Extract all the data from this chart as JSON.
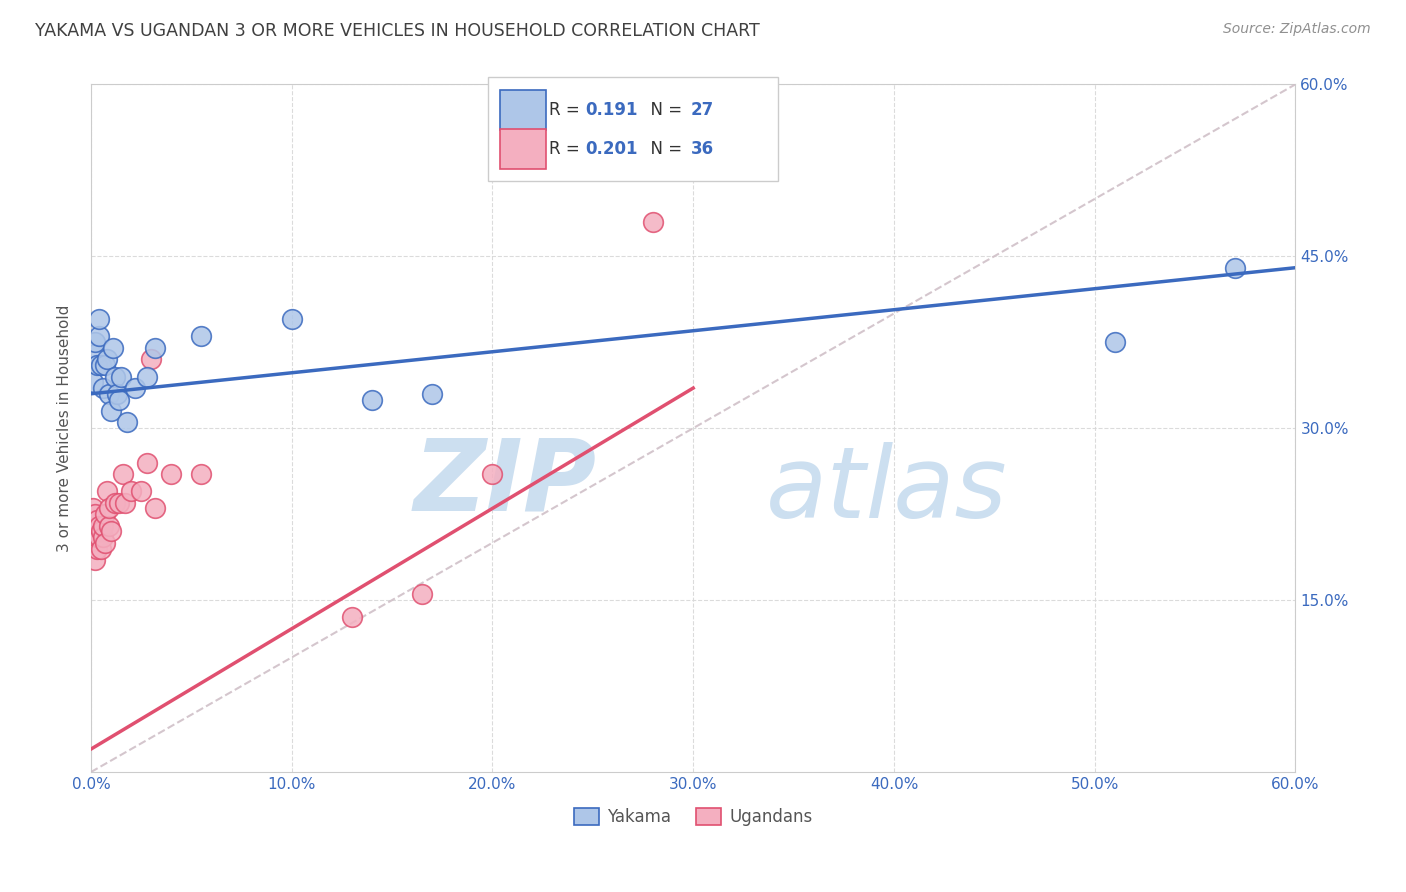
{
  "title": "YAKAMA VS UGANDAN 3 OR MORE VEHICLES IN HOUSEHOLD CORRELATION CHART",
  "source": "Source: ZipAtlas.com",
  "ylabel": "3 or more Vehicles in Household",
  "xlim": [
    0.0,
    0.6
  ],
  "ylim": [
    0.0,
    0.6
  ],
  "yakama_R": 0.191,
  "yakama_N": 27,
  "ugandan_R": 0.201,
  "ugandan_N": 36,
  "yakama_color": "#aec6e8",
  "ugandan_color": "#f4afc0",
  "yakama_line_color": "#3b6abf",
  "ugandan_line_color": "#e05070",
  "dashed_line_color": "#d0c0c8",
  "watermark_color": "#ccdff0",
  "title_color": "#404040",
  "source_color": "#909090",
  "axis_color": "#3b6abf",
  "grid_color": "#d8d8d8",
  "yakama_x": [
    0.001,
    0.002,
    0.002,
    0.003,
    0.004,
    0.004,
    0.005,
    0.006,
    0.007,
    0.008,
    0.009,
    0.01,
    0.011,
    0.012,
    0.013,
    0.014,
    0.015,
    0.018,
    0.022,
    0.028,
    0.032,
    0.055,
    0.1,
    0.14,
    0.17,
    0.51,
    0.57
  ],
  "yakama_y": [
    0.34,
    0.365,
    0.375,
    0.355,
    0.38,
    0.395,
    0.355,
    0.335,
    0.355,
    0.36,
    0.33,
    0.315,
    0.37,
    0.345,
    0.33,
    0.325,
    0.345,
    0.305,
    0.335,
    0.345,
    0.37,
    0.38,
    0.395,
    0.325,
    0.33,
    0.375,
    0.44
  ],
  "ugandan_x": [
    0.001,
    0.001,
    0.001,
    0.002,
    0.002,
    0.002,
    0.003,
    0.003,
    0.003,
    0.004,
    0.004,
    0.005,
    0.005,
    0.006,
    0.006,
    0.007,
    0.007,
    0.008,
    0.009,
    0.009,
    0.01,
    0.012,
    0.014,
    0.016,
    0.017,
    0.02,
    0.025,
    0.028,
    0.03,
    0.032,
    0.04,
    0.055,
    0.13,
    0.165,
    0.2,
    0.28
  ],
  "ugandan_y": [
    0.21,
    0.22,
    0.23,
    0.185,
    0.21,
    0.225,
    0.195,
    0.22,
    0.205,
    0.205,
    0.215,
    0.195,
    0.21,
    0.205,
    0.215,
    0.2,
    0.225,
    0.245,
    0.215,
    0.23,
    0.21,
    0.235,
    0.235,
    0.26,
    0.235,
    0.245,
    0.245,
    0.27,
    0.36,
    0.23,
    0.26,
    0.26,
    0.135,
    0.155,
    0.26,
    0.48
  ],
  "yakama_line_start_x": 0.0,
  "yakama_line_start_y": 0.33,
  "yakama_line_end_x": 0.6,
  "yakama_line_end_y": 0.44,
  "ugandan_line_start_x": 0.0,
  "ugandan_line_start_y": 0.02,
  "ugandan_line_end_x": 0.3,
  "ugandan_line_end_y": 0.335
}
